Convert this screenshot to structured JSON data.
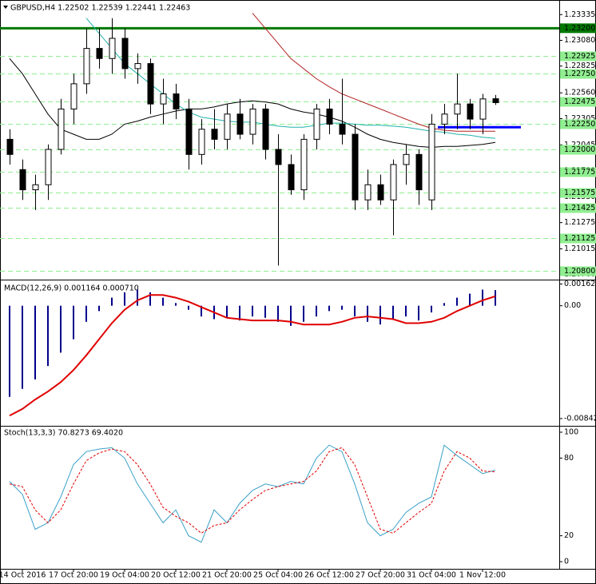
{
  "chart_data": [
    {
      "type": "candlestick",
      "title": "GBPUSD,H4 1.22502 1.22539 1.22441 1.22463",
      "categories": [
        null,
        "14 Oct 2016",
        null,
        null,
        null,
        "17 Oct 20:00",
        null,
        null,
        null,
        "19 Oct 04:00",
        null,
        null,
        null,
        "20 Oct 12:00",
        null,
        null,
        null,
        "21 Oct 20:00",
        null,
        null,
        null,
        "25 Oct 04:00",
        null,
        null,
        null,
        "26 Oct 12:00",
        null,
        null,
        null,
        "27 Oct 20:00",
        null,
        null,
        null,
        "31 Oct 04:00",
        null,
        null,
        null,
        "1 Nov 12:00",
        null
      ],
      "open": [
        1.221,
        1.218,
        1.216,
        1.2165,
        1.22,
        1.224,
        1.2265,
        1.23,
        1.229,
        1.231,
        1.228,
        1.2285,
        1.2245,
        1.2255,
        1.224,
        1.2195,
        1.222,
        1.221,
        1.2235,
        1.2215,
        1.224,
        1.22,
        1.2185,
        1.216,
        1.221,
        1.224,
        1.2225,
        1.2215,
        1.215,
        1.2165,
        1.215,
        1.2185,
        1.2195,
        1.215,
        1.2225,
        1.2235,
        1.2245,
        1.223,
        1.22502
      ],
      "high": [
        1.222,
        1.219,
        1.2175,
        1.2205,
        1.225,
        1.2275,
        1.232,
        1.232,
        1.233,
        1.232,
        1.2295,
        1.229,
        1.227,
        1.2265,
        1.225,
        1.223,
        1.224,
        1.2245,
        1.225,
        1.2245,
        1.2245,
        1.2215,
        1.2195,
        1.2215,
        1.2245,
        1.225,
        1.227,
        1.2225,
        1.218,
        1.2175,
        1.219,
        1.2205,
        1.22,
        1.2235,
        1.2245,
        1.2275,
        1.225,
        1.2255,
        1.22539
      ],
      "low": [
        1.2185,
        1.215,
        1.214,
        1.215,
        1.2195,
        1.2225,
        1.2255,
        1.228,
        1.2275,
        1.227,
        1.2265,
        1.2235,
        1.2225,
        1.223,
        1.218,
        1.2185,
        1.22,
        1.22,
        1.221,
        1.2205,
        1.219,
        1.2085,
        1.2155,
        1.215,
        1.22,
        1.2215,
        1.2205,
        1.214,
        1.214,
        1.2145,
        1.2115,
        1.2165,
        1.2145,
        1.214,
        1.2215,
        1.222,
        1.222,
        1.2215,
        1.22441
      ],
      "close": [
        1.2195,
        1.216,
        1.2165,
        1.22,
        1.224,
        1.2265,
        1.23,
        1.229,
        1.231,
        1.228,
        1.2285,
        1.2245,
        1.2255,
        1.224,
        1.2195,
        1.222,
        1.221,
        1.2235,
        1.2215,
        1.224,
        1.22,
        1.2185,
        1.216,
        1.221,
        1.224,
        1.2225,
        1.2215,
        1.215,
        1.2165,
        1.215,
        1.2185,
        1.2195,
        1.216,
        1.2225,
        1.2235,
        1.2245,
        1.223,
        1.225,
        1.22463
      ],
      "moving_averages": [
        {
          "color": "#000000",
          "values": [
            1.229,
            1.2275,
            1.2255,
            1.2235,
            1.222,
            1.2215,
            1.221,
            1.221,
            1.2215,
            1.2225,
            1.2228,
            1.2232,
            1.2235,
            1.2238,
            1.224,
            1.224,
            1.2242,
            1.2245,
            1.2247,
            1.2248,
            1.2247,
            1.2245,
            1.224,
            1.2237,
            1.2235,
            1.2232,
            1.2228,
            1.2222,
            1.2215,
            1.221,
            1.2207,
            1.2205,
            1.2203,
            1.2202,
            1.2203,
            1.2203,
            1.2204,
            1.2205,
            1.2207
          ]
        },
        {
          "color": "#20b2aa",
          "values": [
            null,
            null,
            null,
            null,
            null,
            null,
            1.233,
            1.2315,
            1.23,
            1.2285,
            1.2275,
            1.2265,
            1.2255,
            1.2245,
            1.2237,
            1.2232,
            1.223,
            1.2228,
            1.2227,
            1.2227,
            1.2225,
            1.2223,
            1.2222,
            1.2222,
            1.2224,
            1.2226,
            1.2226,
            1.2225,
            1.2224,
            1.2224,
            1.2223,
            1.2222,
            1.222,
            1.2218,
            1.2217,
            1.2215,
            1.2214,
            1.2212,
            1.2211
          ]
        },
        {
          "color": "#b22222",
          "values": [
            null,
            null,
            null,
            null,
            null,
            null,
            null,
            null,
            null,
            null,
            null,
            null,
            null,
            null,
            null,
            null,
            null,
            null,
            null,
            1.2335,
            1.232,
            1.2305,
            1.229,
            1.228,
            1.227,
            1.2262,
            1.2255,
            1.225,
            1.2245,
            1.224,
            1.2235,
            1.223,
            1.2225,
            1.2221,
            1.2219,
            1.2218,
            1.2218,
            1.2218,
            1.2218
          ]
        }
      ],
      "ylim": [
        1.2075,
        1.2344
      ],
      "yticks": [
        1.23335,
        {
          "value": 1.2308,
          "label": "1.23080"
        },
        1.22825,
        {
          "value": 1.2256,
          "label": "1.22560"
        },
        1.22305,
        1.22045,
        {
          "value": 1.2179,
          "label": "1.21790"
        },
        {
          "value": 1.2153,
          "label": "1.21530"
        },
        1.21275,
        1.21015,
        {
          "value": 1.2076,
          "label": "1.20760"
        }
      ],
      "levels": [
        1.22925,
        {
          "value": 1.2275,
          "label": "1.22750"
        },
        1.22475,
        {
          "value": 1.2225,
          "label": "1.22250"
        },
        {
          "value": 1.22,
          "label": "1.22000"
        },
        1.21775,
        1.21575,
        1.21425,
        1.21125,
        {
          "value": 1.208,
          "label": "1.20800"
        }
      ],
      "level_color": "#90ee90",
      "resistance": {
        "value": 1.232,
        "label": "1.23200",
        "color": "#007800"
      },
      "support_line": {
        "value": 1.2222,
        "color": "#0000ff"
      }
    },
    {
      "type": "bar",
      "title": "MACD(12,26,9) 0.001164 0.000710",
      "color": "#00008b",
      "values": [
        -0.0068,
        -0.0062,
        -0.0055,
        -0.0045,
        -0.0035,
        -0.0025,
        -0.0012,
        -0.0004,
        0.0006,
        0.001,
        0.0012,
        0.001,
        0.0006,
        0.0002,
        -0.0003,
        -0.0008,
        -0.001,
        -0.0009,
        -0.0011,
        -0.0008,
        -0.0009,
        -0.0012,
        -0.0015,
        -0.0012,
        -0.0008,
        -0.0004,
        -0.0003,
        -0.0008,
        -0.0012,
        -0.0014,
        -0.001,
        -0.0008,
        -0.0011,
        -0.0005,
        0.0002,
        0.0006,
        0.0009,
        0.0012,
        0.001164
      ],
      "signal": {
        "color": "#e00000",
        "values": [
          -0.0082,
          -0.0077,
          -0.007,
          -0.0064,
          -0.0057,
          -0.0048,
          -0.0037,
          -0.0025,
          -0.0013,
          -0.0003,
          0.0004,
          0.0008,
          0.0008,
          0.0006,
          0.0003,
          -0.0001,
          -0.0005,
          -0.0009,
          -0.001,
          -0.0011,
          -0.0011,
          -0.0011,
          -0.0012,
          -0.0014,
          -0.0014,
          -0.0014,
          -0.0012,
          -0.0009,
          -0.0008,
          -0.0009,
          -0.001,
          -0.0013,
          -0.0013,
          -0.0012,
          -0.0009,
          -0.0004,
          0.0,
          0.0004,
          0.00071
        ]
      },
      "ylim": [
        -0.0089,
        0.00165
      ],
      "yticks": [
        0.001621,
        {
          "value": 0,
          "label": "0.00"
        },
        -0.00842
      ]
    },
    {
      "type": "line",
      "title": "Stoch(13,3,3) 70.8273 69.4020",
      "series": [
        {
          "color": "#3aa0c8",
          "dashed": false,
          "values": [
            62,
            52,
            25,
            30,
            50,
            75,
            85,
            87,
            88,
            80,
            60,
            45,
            30,
            40,
            20,
            15,
            40,
            30,
            45,
            55,
            60,
            58,
            62,
            60,
            80,
            90,
            85,
            60,
            30,
            20,
            25,
            38,
            45,
            50,
            90,
            82,
            75,
            68,
            70.8273
          ]
        },
        {
          "color": "#e00000",
          "dashed": true,
          "values": [
            60,
            58,
            40,
            30,
            40,
            60,
            78,
            84,
            87,
            85,
            75,
            60,
            42,
            35,
            30,
            22,
            28,
            30,
            40,
            48,
            55,
            58,
            60,
            62,
            70,
            85,
            88,
            75,
            50,
            25,
            22,
            30,
            38,
            45,
            70,
            85,
            80,
            70,
            69.402
          ]
        }
      ],
      "ylim": [
        -4.3,
        103.7
      ],
      "yticks": [
        100,
        80,
        20,
        0
      ]
    }
  ]
}
